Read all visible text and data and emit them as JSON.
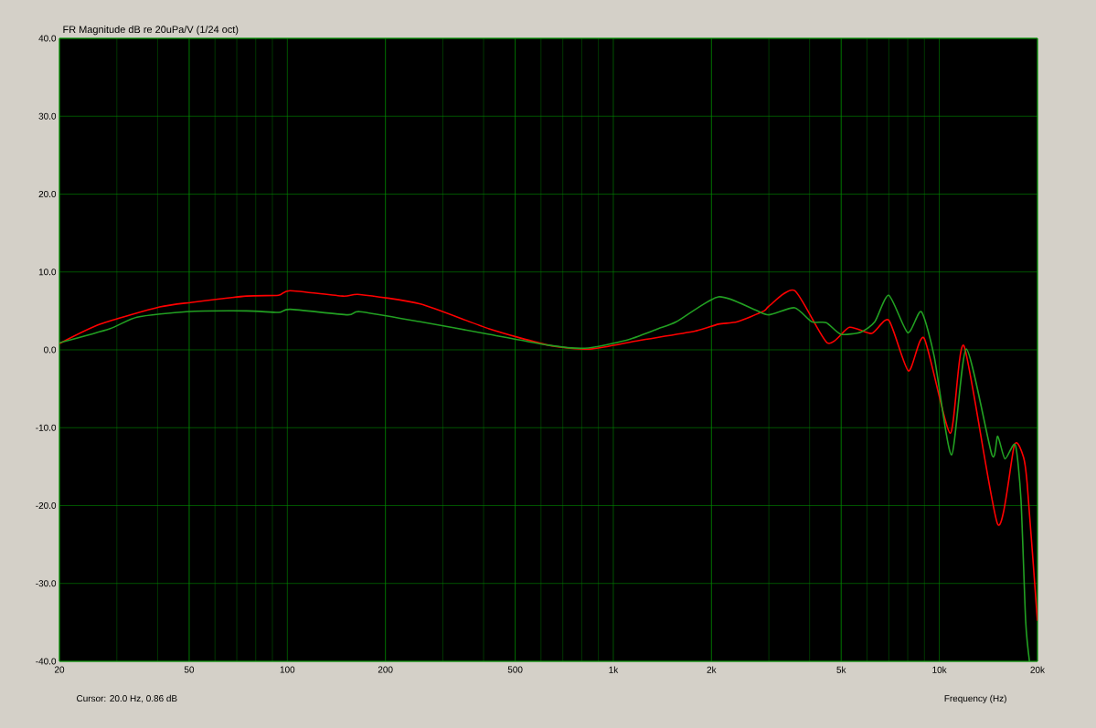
{
  "chart_data": {
    "type": "line",
    "title": "FR Magnitude dB re 20uPa/V (1/24 oct)",
    "xlabel": "Frequency (Hz)",
    "annotations": [
      "Cursor: 20.0 Hz, 0.86 dB"
    ],
    "log": "x",
    "grid": true,
    "xlim": [
      20,
      20000
    ],
    "ylim": [
      -40,
      40
    ],
    "xticks": [
      20,
      50,
      100,
      200,
      500,
      {
        "value": 1000,
        "label": "1k"
      },
      {
        "value": 2000,
        "label": "2k"
      },
      {
        "value": 5000,
        "label": "5k"
      },
      {
        "value": 10000,
        "label": "10k"
      },
      {
        "value": 20000,
        "label": "20k"
      }
    ],
    "yticks": [
      {
        "value": -40,
        "label": "-40.0"
      },
      {
        "value": -30,
        "label": "-30.0"
      },
      {
        "value": -20,
        "label": "-20.0"
      },
      {
        "value": -10,
        "label": "-10.0"
      },
      {
        "value": 0,
        "label": "0.0"
      },
      {
        "value": 10,
        "label": "10.0"
      },
      {
        "value": 20,
        "label": "20.0"
      },
      {
        "value": 30,
        "label": "30.0"
      },
      {
        "value": 40,
        "label": "40.0"
      }
    ],
    "series": [
      {
        "color": "#ff0000",
        "x": [
          20,
          26.7,
          40.6,
          51,
          75,
          94,
          102,
          148,
          167,
          256,
          416,
          632,
          850,
          1200,
          1780,
          2100,
          2400,
          2900,
          3000,
          3600,
          4530,
          5300,
          6200,
          7000,
          8040,
          8980,
          10800,
          11900,
          15100,
          17000,
          18100,
          18600,
          20000
        ],
        "values": [
          0.8,
          3.3,
          5.5,
          6.1,
          6.9,
          7.0,
          7.6,
          6.9,
          7.1,
          5.9,
          2.7,
          0.6,
          0.1,
          1.2,
          2.4,
          3.3,
          3.6,
          5.0,
          5.6,
          7.6,
          0.9,
          2.9,
          2.1,
          3.8,
          -2.7,
          1.5,
          -10.7,
          0.5,
          -22.4,
          -12.2,
          -13.7,
          -17.2,
          -34.8
        ]
      },
      {
        "color": "#22a022",
        "x": [
          20,
          28.5,
          34.6,
          49,
          75,
          94,
          102,
          153,
          167,
          256,
          416,
          632,
          818,
          1090,
          1370,
          1560,
          2100,
          2700,
          3000,
          3600,
          4060,
          4500,
          4990,
          5760,
          6340,
          7000,
          8000,
          8800,
          9640,
          10900,
          12100,
          14500,
          15100,
          15900,
          17100,
          17800,
          18400,
          18900
        ],
        "values": [
          0.9,
          2.7,
          4.2,
          4.9,
          5.0,
          4.8,
          5.2,
          4.5,
          4.9,
          3.6,
          2.0,
          0.6,
          0.2,
          1.2,
          2.7,
          3.6,
          6.8,
          5.2,
          4.5,
          5.4,
          3.6,
          3.5,
          2.0,
          2.3,
          3.6,
          7.0,
          2.2,
          4.9,
          -0.8,
          -13.5,
          0.1,
          -13.5,
          -11.1,
          -14.0,
          -12.2,
          -19.2,
          -34.8,
          -40
        ]
      }
    ]
  }
}
